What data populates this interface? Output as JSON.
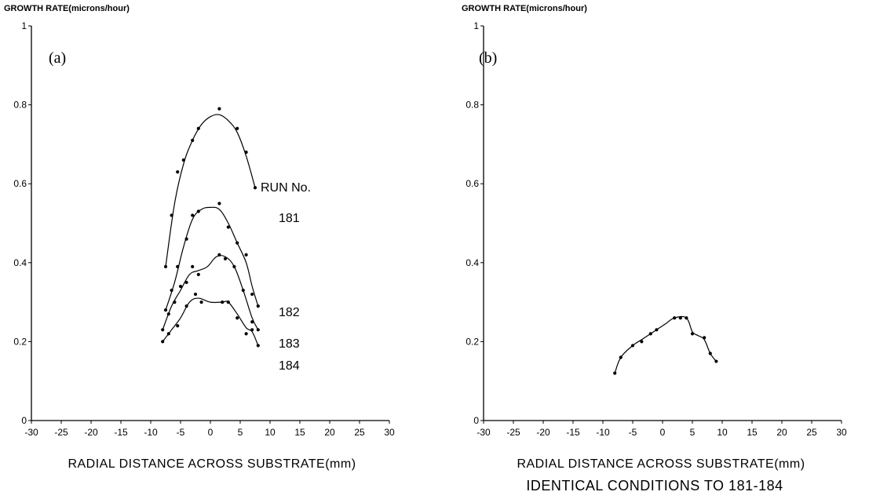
{
  "chart_data": [
    {
      "type": "line",
      "panel_label": "(a)",
      "ylabel": "GROWTH RATE(microns/hour)",
      "xlabel": "RADIAL DISTANCE ACROSS SUBSTRATE(mm)",
      "xlim": [
        -30,
        30
      ],
      "ylim": [
        0,
        1
      ],
      "x_ticks": [
        -30,
        -25,
        -20,
        -15,
        -10,
        -5,
        0,
        5,
        10,
        15,
        20,
        25,
        30
      ],
      "y_ticks": [
        0,
        0.2,
        0.4,
        0.6,
        0.8,
        1
      ],
      "y_tick_labels": [
        "0",
        "0.2",
        "0.4",
        "0.6",
        "0.8",
        "1"
      ],
      "legend_title": "RUN No.",
      "series": [
        {
          "name": "181",
          "points": [
            [
              -7.5,
              0.39
            ],
            [
              -6.5,
              0.52
            ],
            [
              -5.5,
              0.63
            ],
            [
              -4.5,
              0.66
            ],
            [
              -3,
              0.71
            ],
            [
              -2,
              0.74
            ],
            [
              1.5,
              0.79
            ],
            [
              4.5,
              0.74
            ],
            [
              6,
              0.68
            ],
            [
              7.5,
              0.59
            ]
          ],
          "curve": [
            [
              -7.5,
              0.39
            ],
            [
              -6,
              0.55
            ],
            [
              -4.5,
              0.65
            ],
            [
              -3,
              0.71
            ],
            [
              -1.5,
              0.75
            ],
            [
              0,
              0.77
            ],
            [
              1.5,
              0.775
            ],
            [
              3,
              0.76
            ],
            [
              4.5,
              0.73
            ],
            [
              6,
              0.67
            ],
            [
              7.5,
              0.59
            ]
          ]
        },
        {
          "name": "182",
          "points": [
            [
              -7.5,
              0.28
            ],
            [
              -6.5,
              0.33
            ],
            [
              -5.5,
              0.39
            ],
            [
              -4,
              0.46
            ],
            [
              -3,
              0.52
            ],
            [
              -2,
              0.53
            ],
            [
              1.5,
              0.55
            ],
            [
              3,
              0.49
            ],
            [
              4.5,
              0.45
            ],
            [
              6,
              0.42
            ],
            [
              7,
              0.32
            ],
            [
              8,
              0.29
            ]
          ],
          "curve": [
            [
              -7.5,
              0.28
            ],
            [
              -6,
              0.35
            ],
            [
              -4.5,
              0.44
            ],
            [
              -3,
              0.51
            ],
            [
              -1.5,
              0.535
            ],
            [
              0,
              0.54
            ],
            [
              1.5,
              0.535
            ],
            [
              3,
              0.5
            ],
            [
              4.5,
              0.45
            ],
            [
              6,
              0.4
            ],
            [
              7,
              0.34
            ],
            [
              8,
              0.29
            ]
          ]
        },
        {
          "name": "183",
          "points": [
            [
              -8,
              0.23
            ],
            [
              -7,
              0.27
            ],
            [
              -6,
              0.3
            ],
            [
              -5,
              0.34
            ],
            [
              -4,
              0.35
            ],
            [
              -3,
              0.39
            ],
            [
              -2,
              0.37
            ],
            [
              1.5,
              0.42
            ],
            [
              2.5,
              0.41
            ],
            [
              4,
              0.39
            ],
            [
              5.5,
              0.33
            ],
            [
              7,
              0.25
            ],
            [
              8,
              0.23
            ]
          ],
          "curve": [
            [
              -8,
              0.23
            ],
            [
              -6.5,
              0.29
            ],
            [
              -5,
              0.33
            ],
            [
              -3.5,
              0.37
            ],
            [
              -2,
              0.38
            ],
            [
              -0.5,
              0.39
            ],
            [
              1,
              0.415
            ],
            [
              2.5,
              0.415
            ],
            [
              4,
              0.39
            ],
            [
              5.5,
              0.33
            ],
            [
              7,
              0.26
            ],
            [
              8,
              0.23
            ]
          ]
        },
        {
          "name": "184",
          "points": [
            [
              -8,
              0.2
            ],
            [
              -7,
              0.22
            ],
            [
              -5.5,
              0.24
            ],
            [
              -4,
              0.29
            ],
            [
              -2.5,
              0.32
            ],
            [
              -1.5,
              0.3
            ],
            [
              2,
              0.3
            ],
            [
              3,
              0.3
            ],
            [
              4.5,
              0.26
            ],
            [
              6,
              0.22
            ],
            [
              7,
              0.23
            ],
            [
              8,
              0.19
            ]
          ],
          "curve": [
            [
              -8,
              0.2
            ],
            [
              -6.5,
              0.23
            ],
            [
              -5,
              0.26
            ],
            [
              -3.5,
              0.3
            ],
            [
              -2,
              0.31
            ],
            [
              0,
              0.3
            ],
            [
              2,
              0.3
            ],
            [
              3,
              0.3
            ],
            [
              4.5,
              0.27
            ],
            [
              6,
              0.235
            ],
            [
              7,
              0.225
            ],
            [
              8,
              0.19
            ]
          ]
        }
      ]
    },
    {
      "type": "line",
      "panel_label": "(b)",
      "ylabel": "GROWTH RATE(microns/hour)",
      "xlabel": "RADIAL DISTANCE ACROSS SUBSTRATE(mm)",
      "caption": "IDENTICAL CONDITIONS TO 181-184",
      "xlim": [
        -30,
        30
      ],
      "ylim": [
        0,
        1
      ],
      "x_ticks": [
        -30,
        -25,
        -20,
        -15,
        -10,
        -5,
        0,
        5,
        10,
        15,
        20,
        25,
        30
      ],
      "y_ticks": [
        0,
        0.2,
        0.4,
        0.6,
        0.8,
        1
      ],
      "y_tick_labels": [
        "0",
        "0.2",
        "0.4",
        "0.6",
        "0.8",
        "1"
      ],
      "series": [
        {
          "points": [
            [
              -8,
              0.12
            ],
            [
              -7,
              0.16
            ],
            [
              -5,
              0.19
            ],
            [
              -3.5,
              0.2
            ],
            [
              -2,
              0.22
            ],
            [
              -1,
              0.23
            ],
            [
              2,
              0.26
            ],
            [
              3,
              0.26
            ],
            [
              4,
              0.26
            ],
            [
              5,
              0.22
            ],
            [
              7,
              0.21
            ],
            [
              8,
              0.17
            ],
            [
              9,
              0.15
            ]
          ],
          "curve": [
            [
              -8,
              0.12
            ],
            [
              -7,
              0.16
            ],
            [
              -5,
              0.19
            ],
            [
              -3.5,
              0.205
            ],
            [
              -2,
              0.22
            ],
            [
              -1,
              0.23
            ],
            [
              0.5,
              0.245
            ],
            [
              2,
              0.26
            ],
            [
              4,
              0.26
            ],
            [
              5,
              0.225
            ],
            [
              6,
              0.215
            ],
            [
              7,
              0.205
            ],
            [
              8,
              0.17
            ],
            [
              9,
              0.15
            ]
          ]
        }
      ]
    }
  ]
}
